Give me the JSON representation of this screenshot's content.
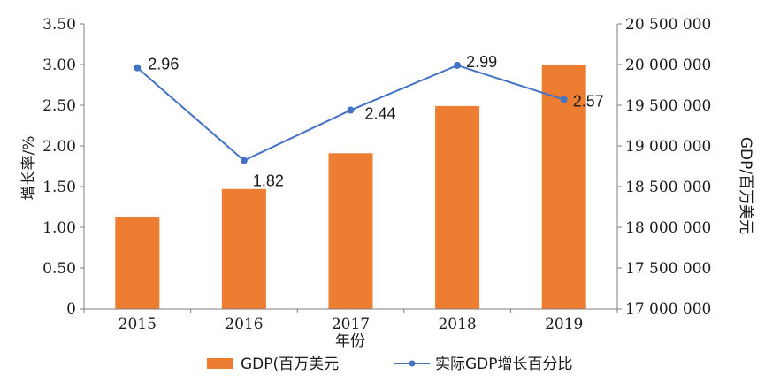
{
  "chart_data": {
    "type": "bar+line",
    "categories": [
      "2015",
      "2016",
      "2017",
      "2018",
      "2019"
    ],
    "xlabel": "年份",
    "ylabel_left": "增长率/%",
    "ylabel_right": "GDP/百万美元",
    "ylim_left": [
      0,
      3.5
    ],
    "yticks_left": [
      "0",
      "0.50",
      "1.00",
      "1.50",
      "2.00",
      "2.50",
      "3.00",
      "3.50"
    ],
    "ylim_right": [
      17000000,
      20500000
    ],
    "yticks_right": [
      "17 000 000",
      "17 500 000",
      "18 000 000",
      "18 500 000",
      "19 000 000",
      "19 500 000",
      "20 000 000",
      "20 500 000"
    ],
    "grid": false,
    "legend_position": "bottom",
    "series": [
      {
        "name": "GDP(百万美元",
        "kind": "bar",
        "axis": "right",
        "color": "#ed7d31",
        "values": [
          18130000,
          18470000,
          18910000,
          19490000,
          20000000
        ]
      },
      {
        "name": "实际GDP增长百分比",
        "kind": "line",
        "axis": "left",
        "color": "#4472c4",
        "values": [
          2.96,
          1.82,
          2.44,
          2.99,
          2.57
        ],
        "labels": [
          "2.96",
          "1.82",
          "2.44",
          "2.99",
          "2.57"
        ]
      }
    ]
  }
}
